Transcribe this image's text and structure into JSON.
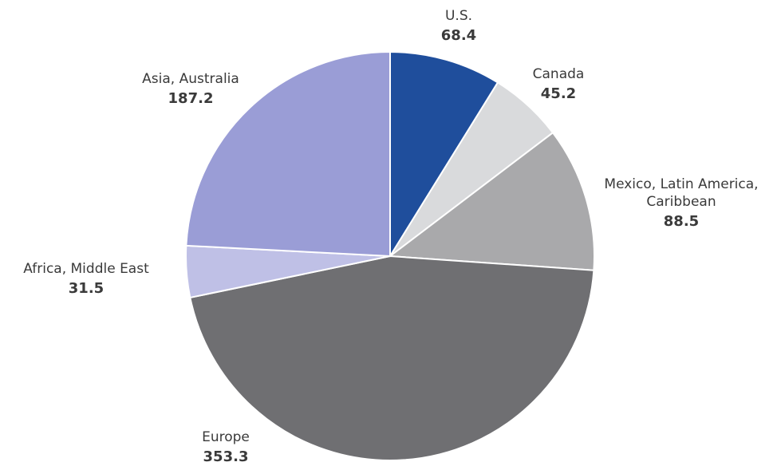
{
  "chart_data": {
    "type": "pie",
    "slices": [
      {
        "label": [
          "U.S."
        ],
        "value": 68.4,
        "value_text": "68.4",
        "color": "#1f4e9c"
      },
      {
        "label": [
          "Canada"
        ],
        "value": 45.2,
        "value_text": "45.2",
        "color": "#d9dadc"
      },
      {
        "label": [
          "Mexico, Latin America,",
          "Caribbean"
        ],
        "value": 88.5,
        "value_text": "88.5",
        "color": "#a9a9ab"
      },
      {
        "label": [
          "Europe"
        ],
        "value": 353.3,
        "value_text": "353.3",
        "color": "#6f6f72"
      },
      {
        "label": [
          "Africa, Middle East"
        ],
        "value": 31.5,
        "value_text": "31.5",
        "color": "#bfc0e6"
      },
      {
        "label": [
          "Asia, Australia"
        ],
        "value": 187.2,
        "value_text": "187.2",
        "color": "#9a9dd6"
      }
    ],
    "start_angle_deg": 0,
    "direction": "clockwise"
  }
}
